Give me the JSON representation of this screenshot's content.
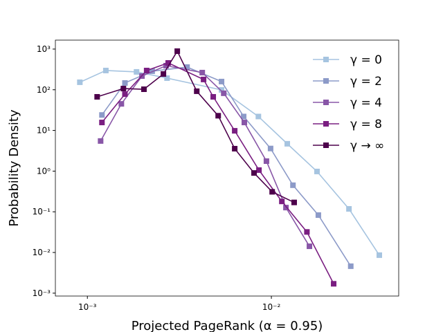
{
  "chart_data": {
    "type": "line",
    "xlabel": "Projected PageRank (α = 0.95)",
    "ylabel": "Probability Density",
    "xscale": "log",
    "yscale": "log",
    "xlim": [
      0.00067,
      0.0492
    ],
    "ylim": [
      0.00085,
      1660
    ],
    "xticks": [
      {
        "value": 0.001,
        "label": "10⁻³"
      },
      {
        "value": 0.01,
        "label": "10⁻²"
      }
    ],
    "yticks": [
      {
        "value": 0.001,
        "label": "10⁻³"
      },
      {
        "value": 0.01,
        "label": "10⁻²"
      },
      {
        "value": 0.1,
        "label": "10⁻¹"
      },
      {
        "value": 1,
        "label": "10⁰"
      },
      {
        "value": 10,
        "label": "10¹"
      },
      {
        "value": 100,
        "label": "10²"
      },
      {
        "value": 1000,
        "label": "10³"
      }
    ],
    "legend": "upper right",
    "series": [
      {
        "name": "γ = 0",
        "color": "#a6c4e0",
        "x": [
          0.00091,
          0.00126,
          0.00185,
          0.00271,
          0.00536,
          0.0085,
          0.0122,
          0.0177,
          0.0264,
          0.0386
        ],
        "values": [
          153,
          297,
          275,
          193,
          99,
          22,
          4.7,
          0.98,
          0.118,
          0.0086
        ]
      },
      {
        "name": "γ = 2",
        "color": "#8c9ac8",
        "x": [
          0.0012,
          0.0016,
          0.00225,
          0.00348,
          0.00536,
          0.00707,
          0.0099,
          0.0131,
          0.018,
          0.027
        ],
        "values": [
          24,
          147,
          286,
          361,
          159,
          22,
          3.6,
          0.45,
          0.083,
          0.0046
        ]
      },
      {
        "name": "γ = 4",
        "color": "#8856a7",
        "x": [
          0.00118,
          0.00153,
          0.00198,
          0.00268,
          0.00421,
          0.00551,
          0.00713,
          0.0094,
          0.012,
          0.0161
        ],
        "values": [
          5.5,
          45,
          217,
          391,
          264,
          82,
          15.7,
          1.76,
          0.127,
          0.0142
        ]
      },
      {
        "name": "γ = 8",
        "color": "#7a1e81",
        "x": [
          0.0012,
          0.0016,
          0.0021,
          0.00275,
          0.00428,
          0.00483,
          0.00632,
          0.00856,
          0.0114,
          0.0156,
          0.0218
        ],
        "values": [
          15.7,
          78,
          297,
          457,
          179,
          67,
          9.8,
          1.06,
          0.18,
          0.032,
          0.0017
        ]
      },
      {
        "name": "γ → ∞",
        "color": "#4d004b",
        "x": [
          0.00113,
          0.00157,
          0.00203,
          0.00259,
          0.00308,
          0.00393,
          0.00514,
          0.00632,
          0.00805,
          0.0101,
          0.0133
        ],
        "values": [
          67,
          107,
          103,
          244,
          889,
          92,
          23,
          3.56,
          0.9,
          0.31,
          0.17
        ]
      }
    ]
  }
}
